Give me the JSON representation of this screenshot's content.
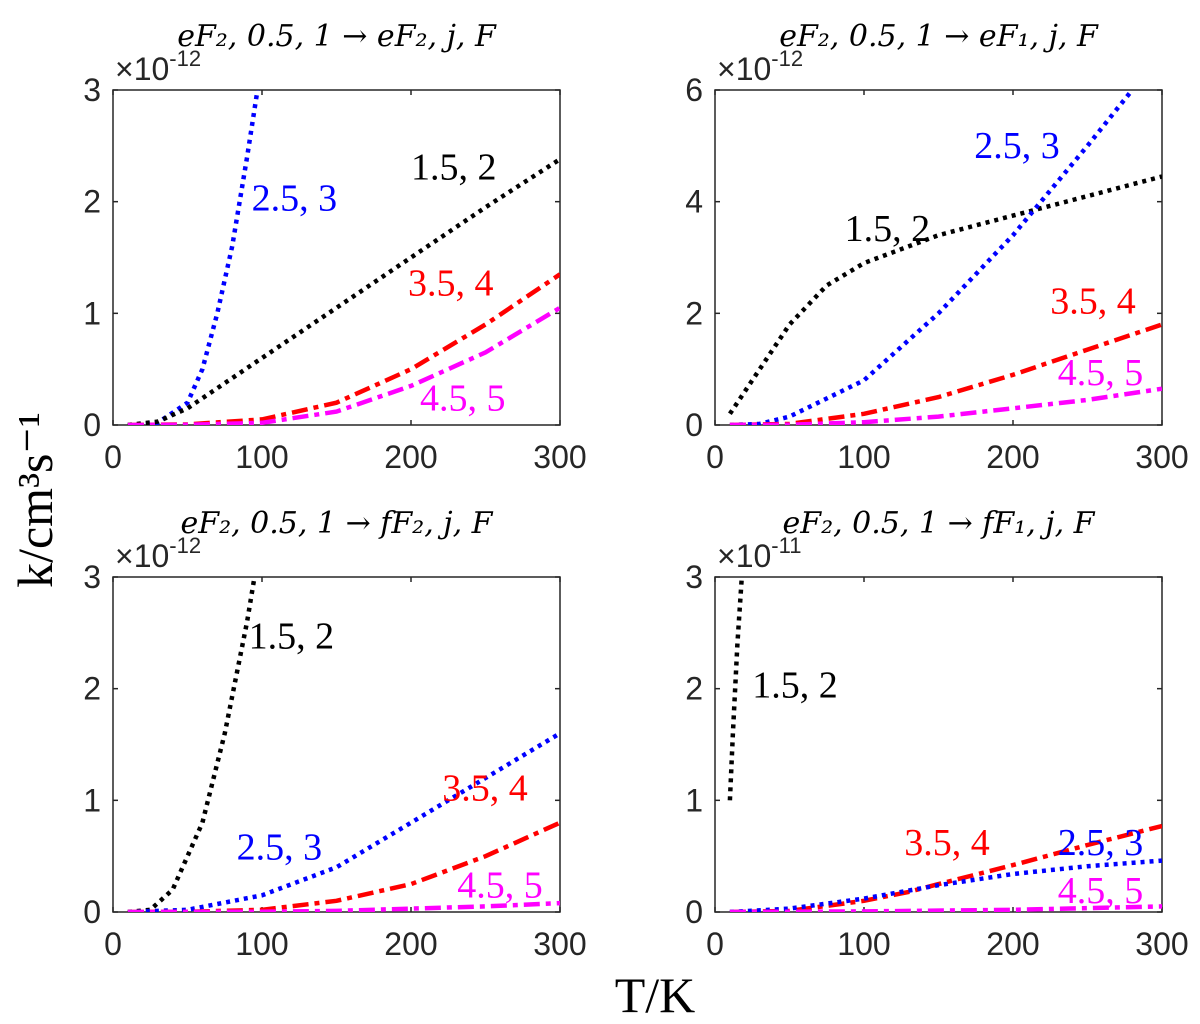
{
  "chart_data": {
    "type": "line",
    "xlabel": "T/K",
    "ylabel": "k/cm³s⁻¹",
    "colors": {
      "1.5, 2": "#000000",
      "2.5, 3": "#0000ff",
      "3.5, 4": "#ff0000",
      "4.5, 5": "#ff00ff"
    },
    "subplots": [
      {
        "title": "eF₂, 0.5, 1 → eF₂, j, F",
        "exponent_base": "×10",
        "exponent_power": "-12",
        "xlim": [
          0,
          300
        ],
        "ylim": [
          0,
          3
        ],
        "xticks": [
          "0",
          "100",
          "200",
          "300"
        ],
        "yticks": [
          "0",
          "1",
          "2",
          "3"
        ],
        "series": [
          {
            "name": "2.5, 3",
            "style": "dotted",
            "x": [
              10,
              30,
              50,
              60,
              70,
              80,
              90,
              97
            ],
            "y": [
              0,
              0.02,
              0.2,
              0.5,
              1.0,
              1.6,
              2.4,
              3.0
            ]
          },
          {
            "name": "1.5, 2",
            "style": "dotted",
            "x": [
              10,
              30,
              50,
              100,
              150,
              200,
              250,
              300
            ],
            "y": [
              0,
              0.03,
              0.15,
              0.6,
              1.05,
              1.5,
              1.95,
              2.38
            ]
          },
          {
            "name": "3.5, 4",
            "style": "dashdot",
            "x": [
              10,
              50,
              100,
              150,
              200,
              250,
              300
            ],
            "y": [
              0,
              0.005,
              0.05,
              0.2,
              0.5,
              0.9,
              1.35
            ]
          },
          {
            "name": "4.5, 5",
            "style": "dashdot",
            "x": [
              10,
              50,
              100,
              150,
              200,
              250,
              300
            ],
            "y": [
              0,
              0.002,
              0.02,
              0.12,
              0.35,
              0.65,
              1.05
            ]
          }
        ]
      },
      {
        "title": "eF₂, 0.5, 1 → eF₁, j, F",
        "exponent_base": "×10",
        "exponent_power": "-12",
        "xlim": [
          0,
          300
        ],
        "ylim": [
          0,
          6
        ],
        "xticks": [
          "0",
          "100",
          "200",
          "300"
        ],
        "yticks": [
          "0",
          "2",
          "4",
          "6"
        ],
        "series": [
          {
            "name": "1.5, 2",
            "style": "dotted",
            "x": [
              10,
              30,
              50,
              75,
              100,
              150,
              200,
              250,
              300
            ],
            "y": [
              0.2,
              1.0,
              1.8,
              2.5,
              2.9,
              3.4,
              3.75,
              4.1,
              4.45
            ]
          },
          {
            "name": "2.5, 3",
            "style": "dotted",
            "x": [
              10,
              30,
              50,
              100,
              150,
              200,
              250,
              280
            ],
            "y": [
              0,
              0.02,
              0.15,
              0.8,
              2.0,
              3.4,
              5.0,
              6.0
            ]
          },
          {
            "name": "3.5, 4",
            "style": "dashdot",
            "x": [
              10,
              50,
              100,
              150,
              200,
              250,
              300
            ],
            "y": [
              0,
              0.02,
              0.2,
              0.5,
              0.9,
              1.35,
              1.8
            ]
          },
          {
            "name": "4.5, 5",
            "style": "dashdot",
            "x": [
              10,
              50,
              100,
              150,
              200,
              250,
              300
            ],
            "y": [
              0,
              0.005,
              0.05,
              0.15,
              0.3,
              0.45,
              0.65
            ]
          }
        ]
      },
      {
        "title": "eF₂, 0.5, 1 → fF₂, j, F",
        "exponent_base": "×10",
        "exponent_power": "-12",
        "xlim": [
          0,
          300
        ],
        "ylim": [
          0,
          3
        ],
        "xticks": [
          "0",
          "100",
          "200",
          "300"
        ],
        "yticks": [
          "0",
          "1",
          "2",
          "3"
        ],
        "series": [
          {
            "name": "1.5, 2",
            "style": "dotted",
            "x": [
              10,
              25,
              40,
              60,
              75,
              90,
              95
            ],
            "y": [
              0,
              0.02,
              0.2,
              0.8,
              1.6,
              2.6,
              3.0
            ]
          },
          {
            "name": "2.5, 3",
            "style": "dotted",
            "x": [
              10,
              50,
              100,
              150,
              200,
              250,
              300
            ],
            "y": [
              0,
              0.02,
              0.15,
              0.4,
              0.8,
              1.2,
              1.6
            ]
          },
          {
            "name": "3.5, 4",
            "style": "dashdot",
            "x": [
              10,
              50,
              100,
              150,
              200,
              250,
              300
            ],
            "y": [
              0,
              0.002,
              0.02,
              0.1,
              0.25,
              0.5,
              0.8
            ]
          },
          {
            "name": "4.5, 5",
            "style": "dashdot",
            "x": [
              10,
              100,
              150,
              200,
              250,
              300
            ],
            "y": [
              0,
              0.003,
              0.01,
              0.03,
              0.05,
              0.08
            ]
          }
        ]
      },
      {
        "title": "eF₂, 0.5, 1 → fF₁, j, F",
        "exponent_base": "×10",
        "exponent_power": "-11",
        "xlim": [
          0,
          300
        ],
        "ylim": [
          0,
          3
        ],
        "xticks": [
          "0",
          "100",
          "200",
          "300"
        ],
        "yticks": [
          "0",
          "1",
          "2",
          "3"
        ],
        "series": [
          {
            "name": "1.5, 2",
            "style": "dotted",
            "x": [
              10,
              12,
              15,
              18
            ],
            "y": [
              1.0,
              1.6,
              2.4,
              3.0
            ]
          },
          {
            "name": "3.5, 4",
            "style": "dashdot",
            "x": [
              10,
              50,
              100,
              130,
              150,
              200,
              250,
              300
            ],
            "y": [
              0,
              0.01,
              0.1,
              0.18,
              0.25,
              0.42,
              0.6,
              0.77
            ]
          },
          {
            "name": "2.5, 3",
            "style": "dotted",
            "x": [
              10,
              50,
              100,
              150,
              200,
              250,
              300
            ],
            "y": [
              0,
              0.03,
              0.12,
              0.24,
              0.34,
              0.41,
              0.46
            ]
          },
          {
            "name": "4.5, 5",
            "style": "dashdot",
            "x": [
              10,
              100,
              200,
              300
            ],
            "y": [
              0,
              0.005,
              0.02,
              0.05
            ]
          }
        ]
      }
    ]
  }
}
